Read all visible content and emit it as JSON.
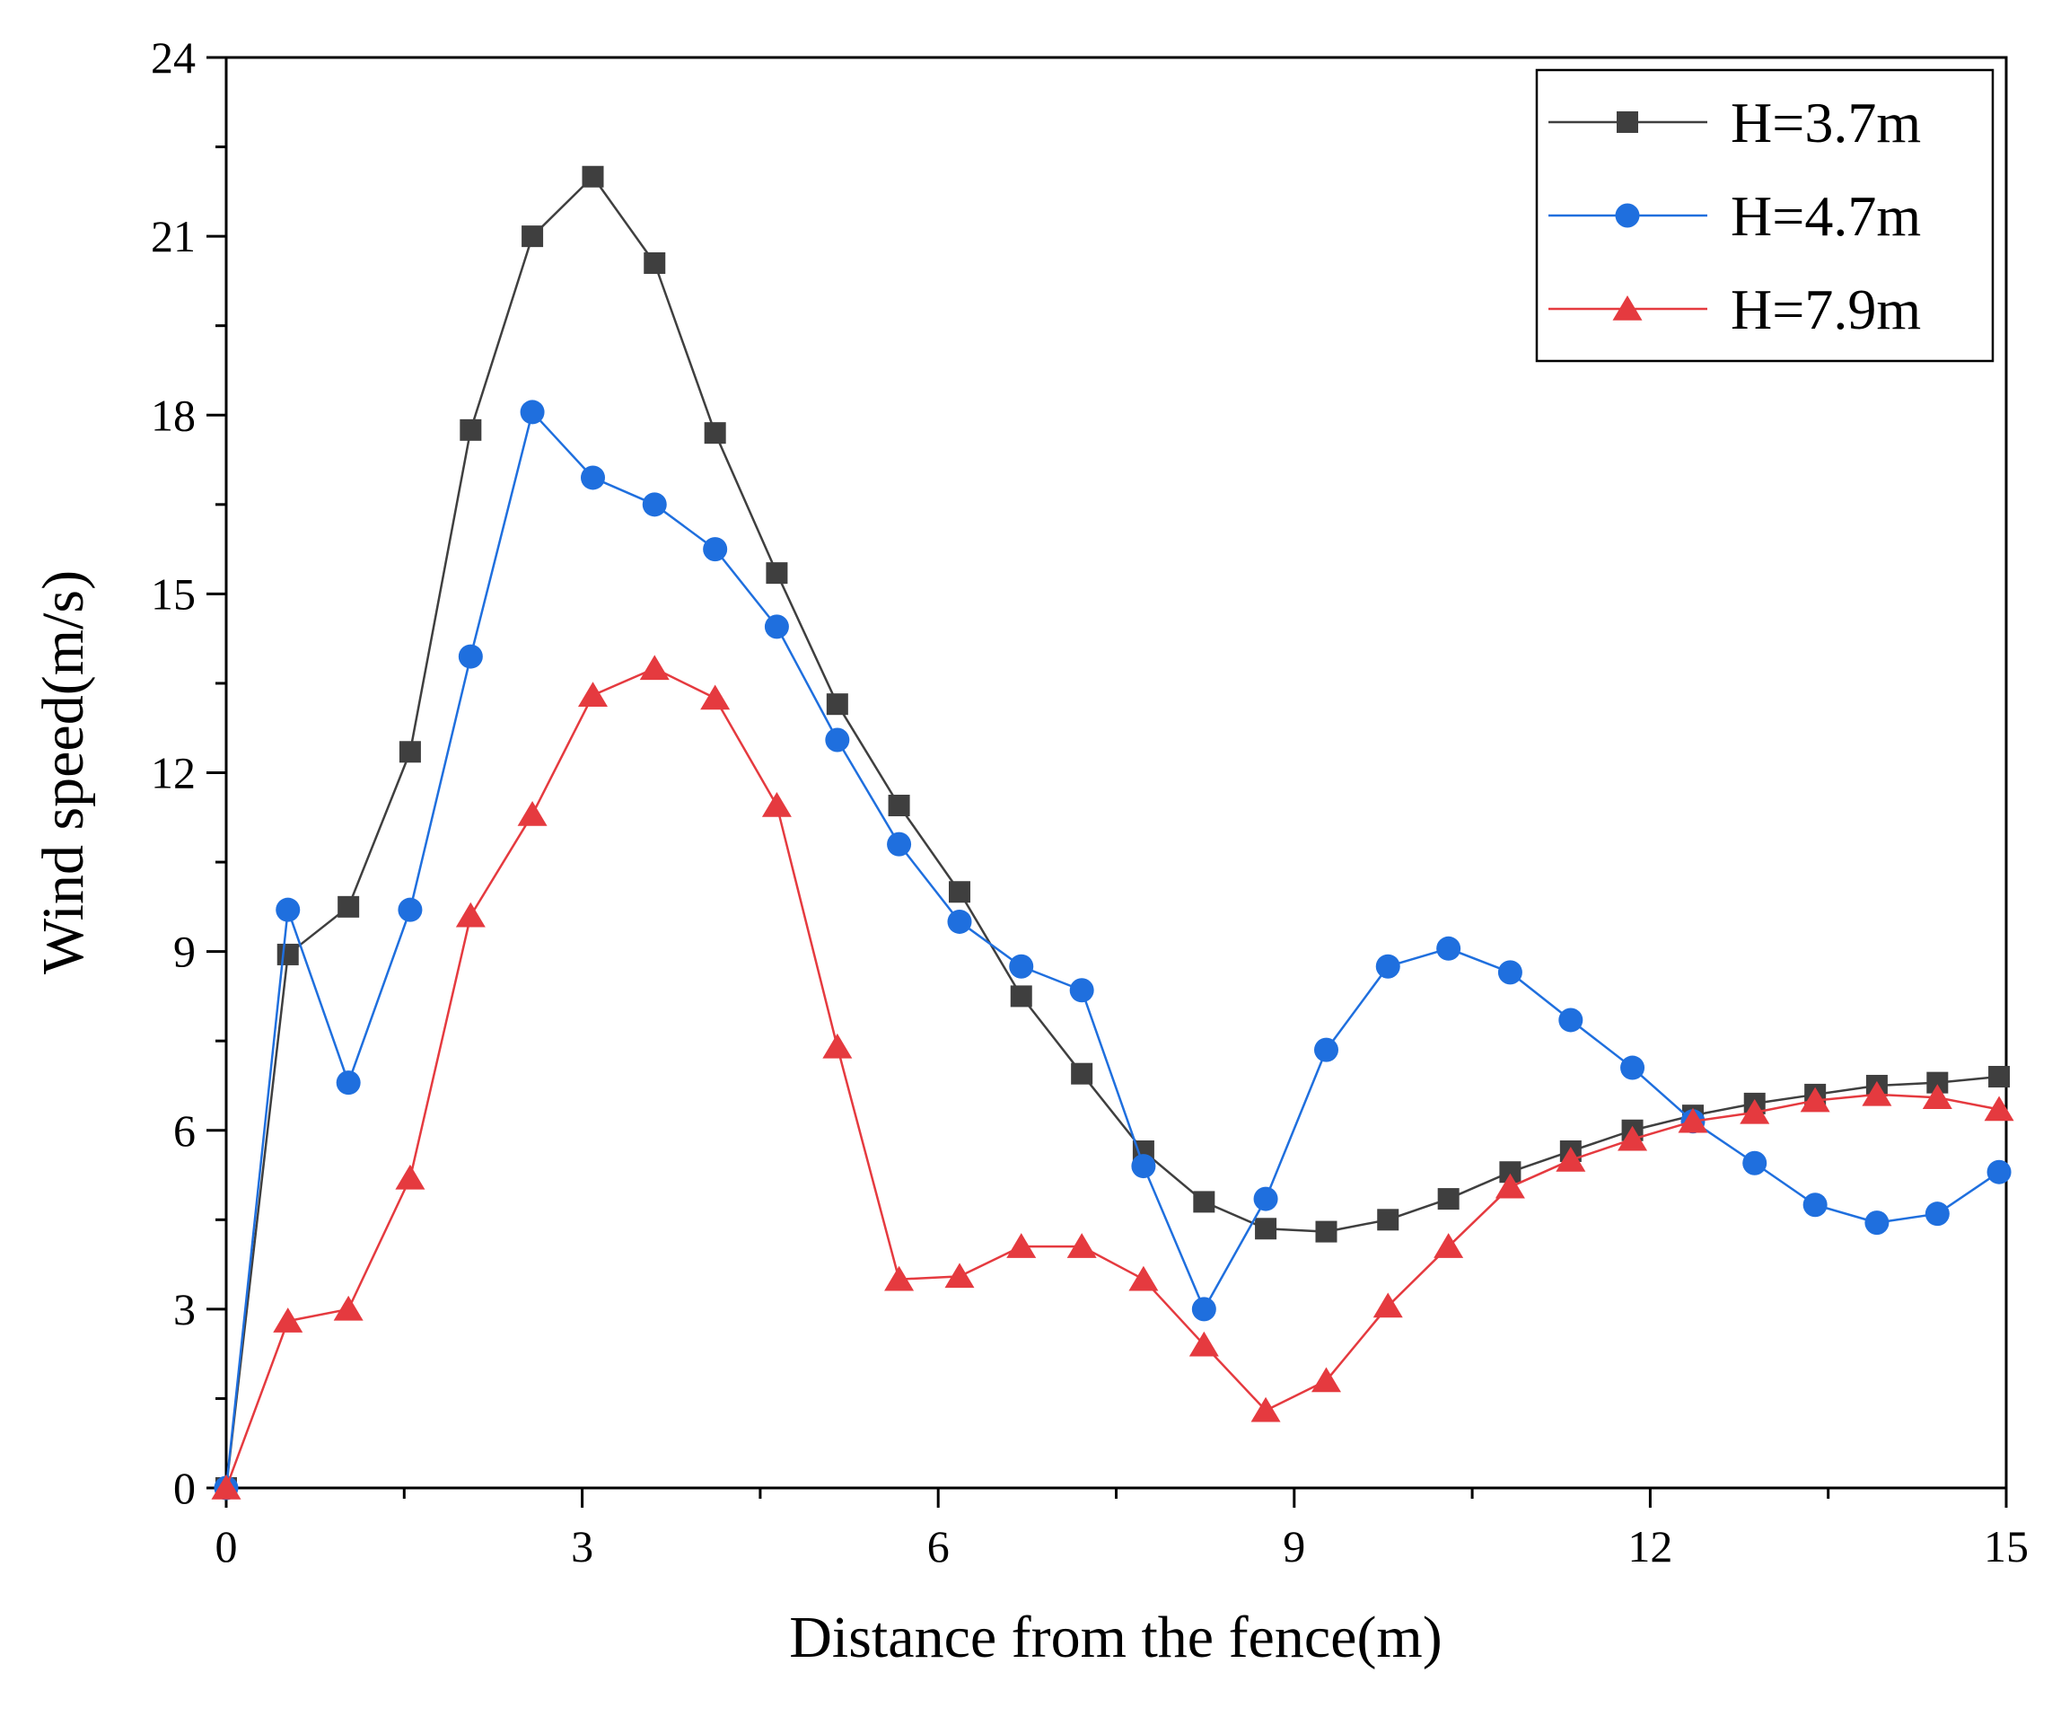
{
  "chart_data": {
    "type": "line",
    "title": "",
    "xlabel": "Distance from the fence(m)",
    "ylabel": "Wind speed(m/s)",
    "xlim": [
      0,
      15
    ],
    "ylim": [
      0,
      24
    ],
    "xticks": [
      0,
      3,
      6,
      9,
      12,
      15
    ],
    "yticks": [
      0,
      3,
      6,
      9,
      12,
      15,
      18,
      21,
      24
    ],
    "xtick_labels": [
      "0",
      "3",
      "6",
      "9",
      "12",
      "15"
    ],
    "ytick_labels": [
      "0",
      "3",
      "6",
      "9",
      "12",
      "15",
      "18",
      "21",
      "24"
    ],
    "grid": false,
    "legend_position": "top-right",
    "x": [
      0,
      0.52,
      1.03,
      1.55,
      2.06,
      2.58,
      3.09,
      3.61,
      4.12,
      4.64,
      5.15,
      5.67,
      6.18,
      6.7,
      7.21,
      7.73,
      8.24,
      8.76,
      9.27,
      9.79,
      10.3,
      10.82,
      11.33,
      11.85,
      12.36,
      12.88,
      13.39,
      13.91,
      14.42,
      14.94
    ],
    "series": [
      {
        "name": "H=3.7m",
        "color": "#3f3f3f",
        "marker": "square",
        "values": [
          0,
          8.95,
          9.75,
          12.35,
          17.75,
          21.0,
          22.0,
          20.55,
          17.7,
          15.35,
          13.15,
          11.45,
          10.0,
          8.25,
          6.95,
          5.65,
          4.8,
          4.35,
          4.3,
          4.5,
          4.85,
          5.3,
          5.65,
          6.0,
          6.25,
          6.45,
          6.6,
          6.75,
          6.8,
          6.9
        ]
      },
      {
        "name": "H=4.7m",
        "color": "#1f6fde",
        "marker": "circle",
        "values": [
          0,
          9.7,
          6.8,
          9.7,
          13.95,
          18.05,
          16.95,
          16.5,
          15.75,
          14.45,
          12.55,
          10.8,
          9.5,
          8.75,
          8.35,
          5.4,
          3.0,
          4.85,
          7.35,
          8.75,
          9.05,
          8.65,
          7.85,
          7.05,
          6.15,
          5.45,
          4.75,
          4.45,
          4.6,
          5.3
        ]
      },
      {
        "name": "H=7.9m",
        "color": "#e53a3f",
        "marker": "triangle",
        "values": [
          0,
          2.8,
          3.0,
          5.2,
          9.6,
          11.3,
          13.3,
          13.75,
          13.25,
          11.45,
          7.4,
          3.5,
          3.55,
          4.05,
          4.05,
          3.5,
          2.4,
          1.3,
          1.8,
          3.05,
          4.05,
          5.05,
          5.5,
          5.85,
          6.15,
          6.3,
          6.5,
          6.6,
          6.55,
          6.35
        ]
      }
    ]
  }
}
